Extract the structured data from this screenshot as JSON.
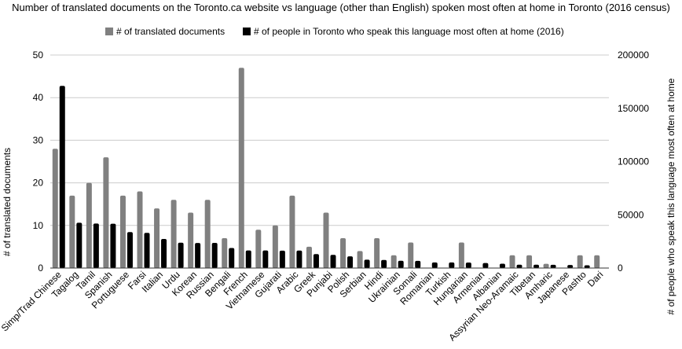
{
  "chart_data": {
    "type": "bar",
    "title": "Number of translated documents on the Toronto.ca website vs language (other than English) spoken most often at home in Toronto (2016 census)",
    "legend_position": "top",
    "grid": true,
    "categories": [
      "Simp/Trad Chinese",
      "Tagalog",
      "Tamil",
      "Spanish",
      "Portuguese",
      "Farsi",
      "Italian",
      "Urdu",
      "Korean",
      "Russian",
      "Bengali",
      "French",
      "Vietnamese",
      "Gujarati",
      "Arabic",
      "Greek",
      "Punjabi",
      "Polish",
      "Serbian",
      "Hindi",
      "Ukrainian",
      "Somali",
      "Romanian",
      "Turkish",
      "Hungarian",
      "Armenian",
      "Albanian",
      "Assyrian Neo-Aramaic",
      "Tibetan",
      "Amharic",
      "Japanese",
      "Pashto",
      "Dari"
    ],
    "left_axis": {
      "label": "# of translated documents",
      "ylim": [
        0,
        50
      ],
      "ticks": [
        0,
        10,
        20,
        30,
        40,
        50
      ]
    },
    "right_axis": {
      "label": "# of people who speak this language most often at home",
      "ylim": [
        0,
        200000
      ],
      "ticks": [
        "0",
        "50000",
        "100000",
        "150000",
        "200000"
      ],
      "tick_values": [
        0,
        50000,
        100000,
        150000,
        200000
      ]
    },
    "series": [
      {
        "name": "# of translated documents",
        "axis": "left",
        "color": "#808080",
        "values": [
          28,
          17,
          20,
          26,
          17,
          18,
          14,
          16,
          13,
          16,
          7,
          47,
          9,
          10,
          17,
          5,
          13,
          7,
          4,
          7,
          3,
          6,
          0,
          0,
          6,
          0,
          0,
          3,
          3,
          1,
          0,
          3,
          3
        ]
      },
      {
        "name": "# of people in Toronto who speak this language most often at home (2016)",
        "axis": "right",
        "color": "#000000",
        "values": [
          171000,
          42500,
          41800,
          41600,
          33800,
          33000,
          27300,
          23800,
          23500,
          23600,
          18800,
          16500,
          16500,
          16300,
          16400,
          13100,
          12400,
          11000,
          7800,
          7600,
          6800,
          6700,
          5300,
          5300,
          5200,
          4700,
          4100,
          3100,
          3100,
          3000,
          2900,
          2600,
          0
        ]
      }
    ]
  }
}
